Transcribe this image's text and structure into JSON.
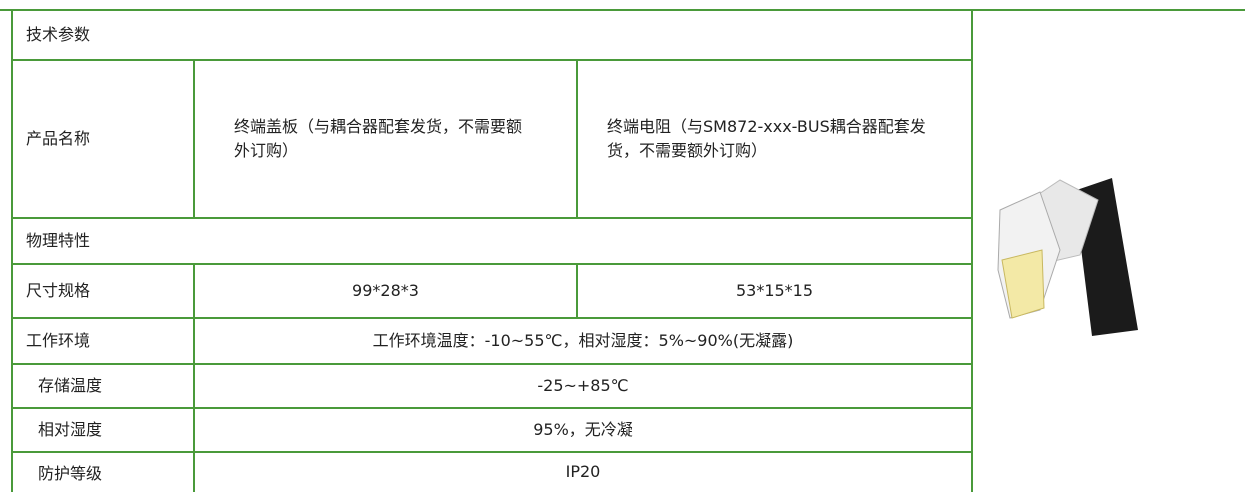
{
  "header": {
    "title": "技术参数"
  },
  "table": {
    "rows": [
      [
        "产品名称",
        "终端盖板（与耦合器配套发货，不需要额外订购）",
        "终端电阻（与SM872-xxx-BUS耦合器配套发货，不需要额外订购）"
      ],
      [
        "物理特性"
      ],
      [
        "尺寸规格",
        "99*28*3",
        "53*15*15"
      ],
      [
        "工作环境",
        "工作环境温度：-10~55℃，相对湿度：5%~90%(无凝露)"
      ],
      [
        "存储温度",
        "-25~+85℃"
      ],
      [
        "相对湿度",
        "95%，无冷凝"
      ],
      [
        "防护等级",
        "IP20"
      ]
    ]
  }
}
